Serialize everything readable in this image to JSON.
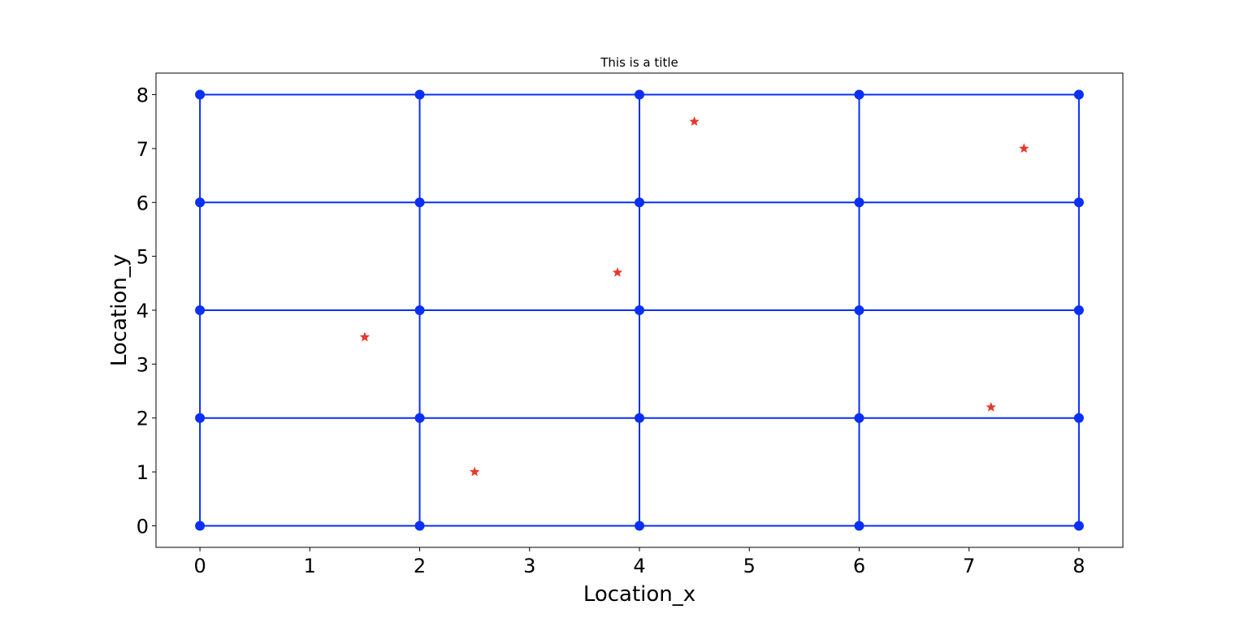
{
  "chart_data": {
    "type": "scatter",
    "title": "This is a title",
    "xlabel": "Location_x",
    "ylabel": "Location_y",
    "xlim": [
      -0.4,
      8.4
    ],
    "ylim": [
      -0.4,
      8.4
    ],
    "xticks": [
      0,
      1,
      2,
      3,
      4,
      5,
      6,
      7,
      8
    ],
    "yticks": [
      0,
      1,
      2,
      3,
      4,
      5,
      6,
      7,
      8
    ],
    "grid": false,
    "legend": "none",
    "series": [
      {
        "marker": "circle",
        "style": "lines+markers",
        "color": "#0a2ff5",
        "grid_x": [
          0,
          2,
          4,
          6,
          8
        ],
        "grid_y": [
          0,
          2,
          4,
          6,
          8
        ]
      },
      {
        "marker": "star",
        "style": "markers",
        "color": "#e8372b",
        "points": [
          [
            1.5,
            3.5
          ],
          [
            2.5,
            1.0
          ],
          [
            3.8,
            4.7
          ],
          [
            4.5,
            7.5
          ],
          [
            7.5,
            7.0
          ],
          [
            7.2,
            2.2
          ]
        ]
      }
    ]
  }
}
